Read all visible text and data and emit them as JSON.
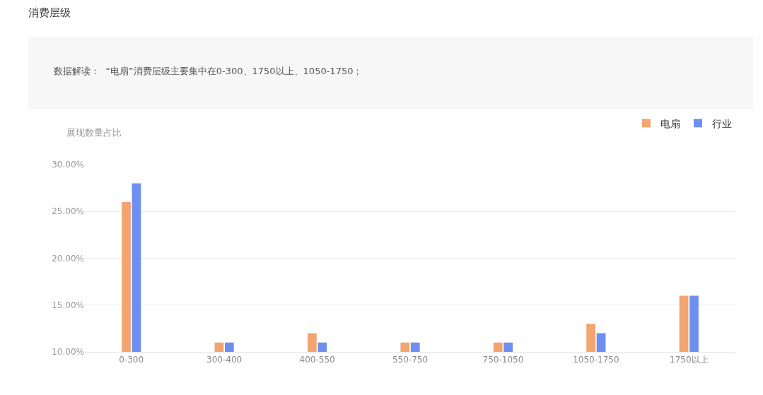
{
  "chart_data": {
    "type": "bar",
    "title": "消费层级",
    "subtitle": "数据解读：  “电扇”消费层级主要集中在0-300、1750以上、1050-1750；",
    "ylabel": "展现数量占比",
    "categories": [
      "0-300",
      "300-400",
      "400-550",
      "550-750",
      "750-1050",
      "1050-1750",
      "1750以上"
    ],
    "series": [
      {
        "name": "电扇",
        "color": "#f3a46f",
        "values": [
          26,
          11,
          12,
          11,
          11,
          13,
          16
        ]
      },
      {
        "name": "行业",
        "color": "#6f8ff0",
        "values": [
          28,
          11,
          11,
          11,
          11,
          12,
          16
        ]
      }
    ],
    "ylim": [
      10,
      30
    ],
    "yticks": [
      {
        "value": 10,
        "label": "10.00%"
      },
      {
        "value": 15,
        "label": "15.00%"
      },
      {
        "value": 20,
        "label": "20.00%"
      },
      {
        "value": 25,
        "label": "25.00%"
      },
      {
        "value": 30,
        "label": "30.00%"
      }
    ],
    "grid": "y",
    "legend": "top right"
  }
}
